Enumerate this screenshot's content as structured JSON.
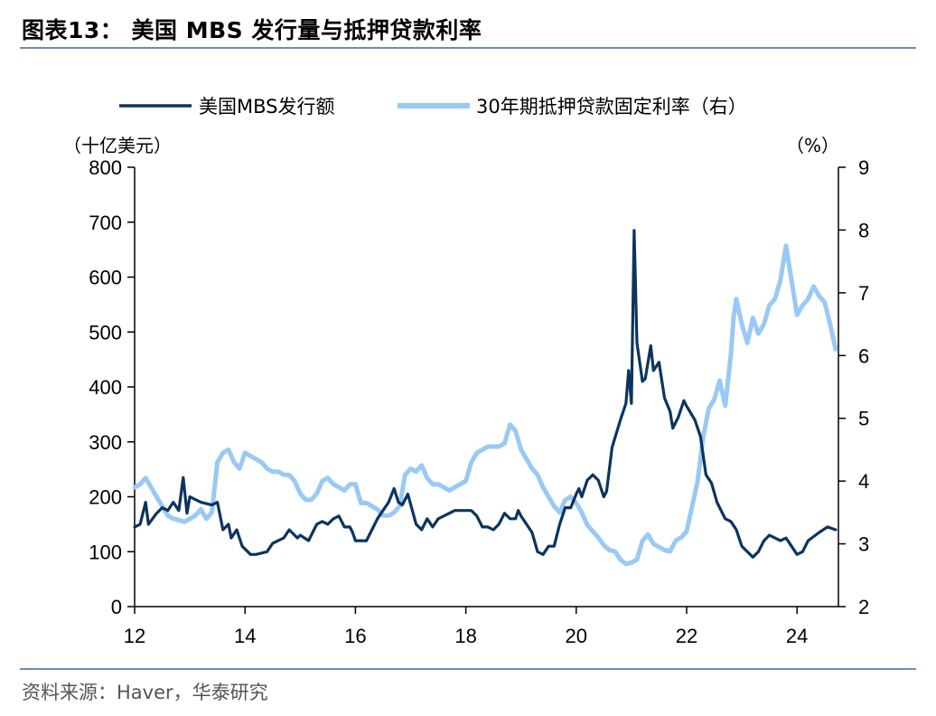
{
  "figure": {
    "title": "图表13：  美国 MBS 发行量与抵押贷款利率",
    "source": "资料来源：Haver，华泰研究"
  },
  "colors": {
    "series1": "#0c3460",
    "series2": "#99c9f5",
    "rule": "#6b8db5"
  },
  "chart_data": {
    "type": "line",
    "title": "",
    "xlabel": "",
    "left_unit": "（十亿美元）",
    "right_unit": "（%）",
    "xlim": [
      2012.0,
      2024.75
    ],
    "x_ticks": [
      2012,
      2014,
      2016,
      2018,
      2020,
      2022,
      2024
    ],
    "x_tick_labels": [
      "12",
      "14",
      "16",
      "18",
      "20",
      "22",
      "24"
    ],
    "ylim_left": [
      0,
      800
    ],
    "y_ticks_left": [
      0,
      100,
      200,
      300,
      400,
      500,
      600,
      700,
      800
    ],
    "ylim_right": [
      2,
      9
    ],
    "y_ticks_right": [
      2,
      3,
      4,
      5,
      6,
      7,
      8,
      9
    ],
    "grid": false,
    "legend_position": "top",
    "series": [
      {
        "name": "美国MBS发行额",
        "axis": "left",
        "points": [
          [
            2012.0,
            145
          ],
          [
            2012.1,
            150
          ],
          [
            2012.2,
            190
          ],
          [
            2012.25,
            150
          ],
          [
            2012.4,
            170
          ],
          [
            2012.5,
            180
          ],
          [
            2012.6,
            175
          ],
          [
            2012.7,
            190
          ],
          [
            2012.8,
            175
          ],
          [
            2012.88,
            235
          ],
          [
            2012.95,
            170
          ],
          [
            2013.0,
            200
          ],
          [
            2013.2,
            190
          ],
          [
            2013.4,
            185
          ],
          [
            2013.5,
            190
          ],
          [
            2013.6,
            140
          ],
          [
            2013.7,
            150
          ],
          [
            2013.75,
            125
          ],
          [
            2013.85,
            140
          ],
          [
            2013.95,
            110
          ],
          [
            2014.1,
            95
          ],
          [
            2014.2,
            95
          ],
          [
            2014.4,
            100
          ],
          [
            2014.5,
            115
          ],
          [
            2014.7,
            125
          ],
          [
            2014.8,
            140
          ],
          [
            2014.95,
            125
          ],
          [
            2015.0,
            130
          ],
          [
            2015.15,
            120
          ],
          [
            2015.3,
            150
          ],
          [
            2015.4,
            155
          ],
          [
            2015.5,
            150
          ],
          [
            2015.6,
            160
          ],
          [
            2015.7,
            165
          ],
          [
            2015.8,
            145
          ],
          [
            2015.9,
            145
          ],
          [
            2015.95,
            135
          ],
          [
            2016.0,
            120
          ],
          [
            2016.1,
            120
          ],
          [
            2016.2,
            120
          ],
          [
            2016.3,
            140
          ],
          [
            2016.4,
            160
          ],
          [
            2016.5,
            175
          ],
          [
            2016.6,
            190
          ],
          [
            2016.7,
            215
          ],
          [
            2016.78,
            190
          ],
          [
            2016.85,
            185
          ],
          [
            2016.95,
            205
          ],
          [
            2017.1,
            150
          ],
          [
            2017.2,
            140
          ],
          [
            2017.3,
            160
          ],
          [
            2017.4,
            145
          ],
          [
            2017.5,
            160
          ],
          [
            2017.6,
            165
          ],
          [
            2017.8,
            175
          ],
          [
            2017.95,
            175
          ],
          [
            2018.1,
            175
          ],
          [
            2018.2,
            165
          ],
          [
            2018.3,
            145
          ],
          [
            2018.4,
            145
          ],
          [
            2018.5,
            140
          ],
          [
            2018.6,
            150
          ],
          [
            2018.7,
            170
          ],
          [
            2018.8,
            160
          ],
          [
            2018.9,
            160
          ],
          [
            2018.95,
            175
          ],
          [
            2019.0,
            165
          ],
          [
            2019.1,
            150
          ],
          [
            2019.2,
            135
          ],
          [
            2019.3,
            100
          ],
          [
            2019.4,
            95
          ],
          [
            2019.5,
            110
          ],
          [
            2019.6,
            110
          ],
          [
            2019.7,
            150
          ],
          [
            2019.8,
            180
          ],
          [
            2019.9,
            180
          ],
          [
            2020.0,
            205
          ],
          [
            2020.05,
            215
          ],
          [
            2020.1,
            200
          ],
          [
            2020.2,
            230
          ],
          [
            2020.3,
            240
          ],
          [
            2020.4,
            230
          ],
          [
            2020.5,
            200
          ],
          [
            2020.55,
            210
          ],
          [
            2020.65,
            290
          ],
          [
            2020.8,
            340
          ],
          [
            2020.9,
            370
          ],
          [
            2020.95,
            430
          ],
          [
            2021.0,
            370
          ],
          [
            2021.05,
            685
          ],
          [
            2021.1,
            480
          ],
          [
            2021.2,
            410
          ],
          [
            2021.25,
            415
          ],
          [
            2021.35,
            475
          ],
          [
            2021.4,
            430
          ],
          [
            2021.5,
            445
          ],
          [
            2021.6,
            380
          ],
          [
            2021.7,
            355
          ],
          [
            2021.75,
            325
          ],
          [
            2021.85,
            345
          ],
          [
            2021.95,
            375
          ],
          [
            2022.0,
            365
          ],
          [
            2022.15,
            340
          ],
          [
            2022.25,
            310
          ],
          [
            2022.35,
            240
          ],
          [
            2022.45,
            225
          ],
          [
            2022.55,
            190
          ],
          [
            2022.6,
            180
          ],
          [
            2022.7,
            160
          ],
          [
            2022.8,
            155
          ],
          [
            2022.9,
            140
          ],
          [
            2023.0,
            110
          ],
          [
            2023.1,
            100
          ],
          [
            2023.2,
            90
          ],
          [
            2023.3,
            100
          ],
          [
            2023.4,
            120
          ],
          [
            2023.5,
            130
          ],
          [
            2023.6,
            125
          ],
          [
            2023.7,
            120
          ],
          [
            2023.8,
            125
          ],
          [
            2023.9,
            110
          ],
          [
            2024.0,
            95
          ],
          [
            2024.1,
            100
          ],
          [
            2024.2,
            120
          ],
          [
            2024.4,
            135
          ],
          [
            2024.55,
            145
          ],
          [
            2024.7,
            140
          ]
        ]
      },
      {
        "name": "30年期抵押贷款固定利率（右）",
        "axis": "right",
        "points": [
          [
            2012.0,
            3.9
          ],
          [
            2012.1,
            3.95
          ],
          [
            2012.2,
            4.05
          ],
          [
            2012.3,
            3.9
          ],
          [
            2012.4,
            3.75
          ],
          [
            2012.5,
            3.6
          ],
          [
            2012.6,
            3.45
          ],
          [
            2012.7,
            3.4
          ],
          [
            2012.8,
            3.38
          ],
          [
            2012.9,
            3.35
          ],
          [
            2013.0,
            3.4
          ],
          [
            2013.1,
            3.45
          ],
          [
            2013.2,
            3.55
          ],
          [
            2013.3,
            3.4
          ],
          [
            2013.4,
            3.5
          ],
          [
            2013.5,
            4.3
          ],
          [
            2013.6,
            4.45
          ],
          [
            2013.7,
            4.5
          ],
          [
            2013.8,
            4.3
          ],
          [
            2013.9,
            4.2
          ],
          [
            2014.0,
            4.45
          ],
          [
            2014.1,
            4.4
          ],
          [
            2014.2,
            4.35
          ],
          [
            2014.3,
            4.3
          ],
          [
            2014.4,
            4.2
          ],
          [
            2014.5,
            4.15
          ],
          [
            2014.6,
            4.15
          ],
          [
            2014.7,
            4.1
          ],
          [
            2014.8,
            4.1
          ],
          [
            2014.9,
            4.0
          ],
          [
            2015.0,
            3.8
          ],
          [
            2015.1,
            3.7
          ],
          [
            2015.2,
            3.7
          ],
          [
            2015.3,
            3.8
          ],
          [
            2015.4,
            4.0
          ],
          [
            2015.5,
            4.05
          ],
          [
            2015.6,
            3.95
          ],
          [
            2015.7,
            3.9
          ],
          [
            2015.8,
            3.85
          ],
          [
            2015.9,
            3.95
          ],
          [
            2016.0,
            3.95
          ],
          [
            2016.1,
            3.65
          ],
          [
            2016.2,
            3.65
          ],
          [
            2016.3,
            3.6
          ],
          [
            2016.4,
            3.55
          ],
          [
            2016.5,
            3.45
          ],
          [
            2016.6,
            3.45
          ],
          [
            2016.7,
            3.5
          ],
          [
            2016.8,
            3.6
          ],
          [
            2016.9,
            4.1
          ],
          [
            2017.0,
            4.2
          ],
          [
            2017.1,
            4.15
          ],
          [
            2017.2,
            4.25
          ],
          [
            2017.3,
            4.05
          ],
          [
            2017.4,
            3.95
          ],
          [
            2017.5,
            3.95
          ],
          [
            2017.6,
            3.9
          ],
          [
            2017.7,
            3.85
          ],
          [
            2017.8,
            3.9
          ],
          [
            2017.9,
            3.95
          ],
          [
            2018.0,
            4.0
          ],
          [
            2018.1,
            4.3
          ],
          [
            2018.2,
            4.45
          ],
          [
            2018.3,
            4.5
          ],
          [
            2018.4,
            4.55
          ],
          [
            2018.5,
            4.55
          ],
          [
            2018.6,
            4.55
          ],
          [
            2018.7,
            4.6
          ],
          [
            2018.8,
            4.9
          ],
          [
            2018.9,
            4.8
          ],
          [
            2019.0,
            4.5
          ],
          [
            2019.1,
            4.35
          ],
          [
            2019.2,
            4.2
          ],
          [
            2019.3,
            4.1
          ],
          [
            2019.4,
            3.9
          ],
          [
            2019.5,
            3.75
          ],
          [
            2019.6,
            3.6
          ],
          [
            2019.7,
            3.5
          ],
          [
            2019.8,
            3.7
          ],
          [
            2019.9,
            3.75
          ],
          [
            2020.0,
            3.65
          ],
          [
            2020.1,
            3.5
          ],
          [
            2020.2,
            3.3
          ],
          [
            2020.3,
            3.2
          ],
          [
            2020.4,
            3.1
          ],
          [
            2020.5,
            2.98
          ],
          [
            2020.6,
            2.9
          ],
          [
            2020.7,
            2.88
          ],
          [
            2020.8,
            2.75
          ],
          [
            2020.9,
            2.68
          ],
          [
            2021.0,
            2.7
          ],
          [
            2021.1,
            2.75
          ],
          [
            2021.2,
            3.05
          ],
          [
            2021.3,
            3.15
          ],
          [
            2021.4,
            3.0
          ],
          [
            2021.5,
            2.95
          ],
          [
            2021.6,
            2.9
          ],
          [
            2021.7,
            2.88
          ],
          [
            2021.8,
            3.05
          ],
          [
            2021.9,
            3.1
          ],
          [
            2022.0,
            3.2
          ],
          [
            2022.1,
            3.6
          ],
          [
            2022.2,
            4.0
          ],
          [
            2022.3,
            4.7
          ],
          [
            2022.4,
            5.15
          ],
          [
            2022.5,
            5.3
          ],
          [
            2022.6,
            5.6
          ],
          [
            2022.7,
            5.2
          ],
          [
            2022.8,
            6.0
          ],
          [
            2022.85,
            6.6
          ],
          [
            2022.9,
            6.9
          ],
          [
            2023.0,
            6.5
          ],
          [
            2023.1,
            6.2
          ],
          [
            2023.2,
            6.6
          ],
          [
            2023.3,
            6.35
          ],
          [
            2023.4,
            6.5
          ],
          [
            2023.5,
            6.8
          ],
          [
            2023.6,
            6.9
          ],
          [
            2023.7,
            7.2
          ],
          [
            2023.8,
            7.75
          ],
          [
            2023.9,
            7.2
          ],
          [
            2024.0,
            6.65
          ],
          [
            2024.1,
            6.8
          ],
          [
            2024.2,
            6.9
          ],
          [
            2024.3,
            7.1
          ],
          [
            2024.4,
            6.95
          ],
          [
            2024.5,
            6.85
          ],
          [
            2024.6,
            6.5
          ],
          [
            2024.7,
            6.1
          ]
        ]
      }
    ]
  }
}
